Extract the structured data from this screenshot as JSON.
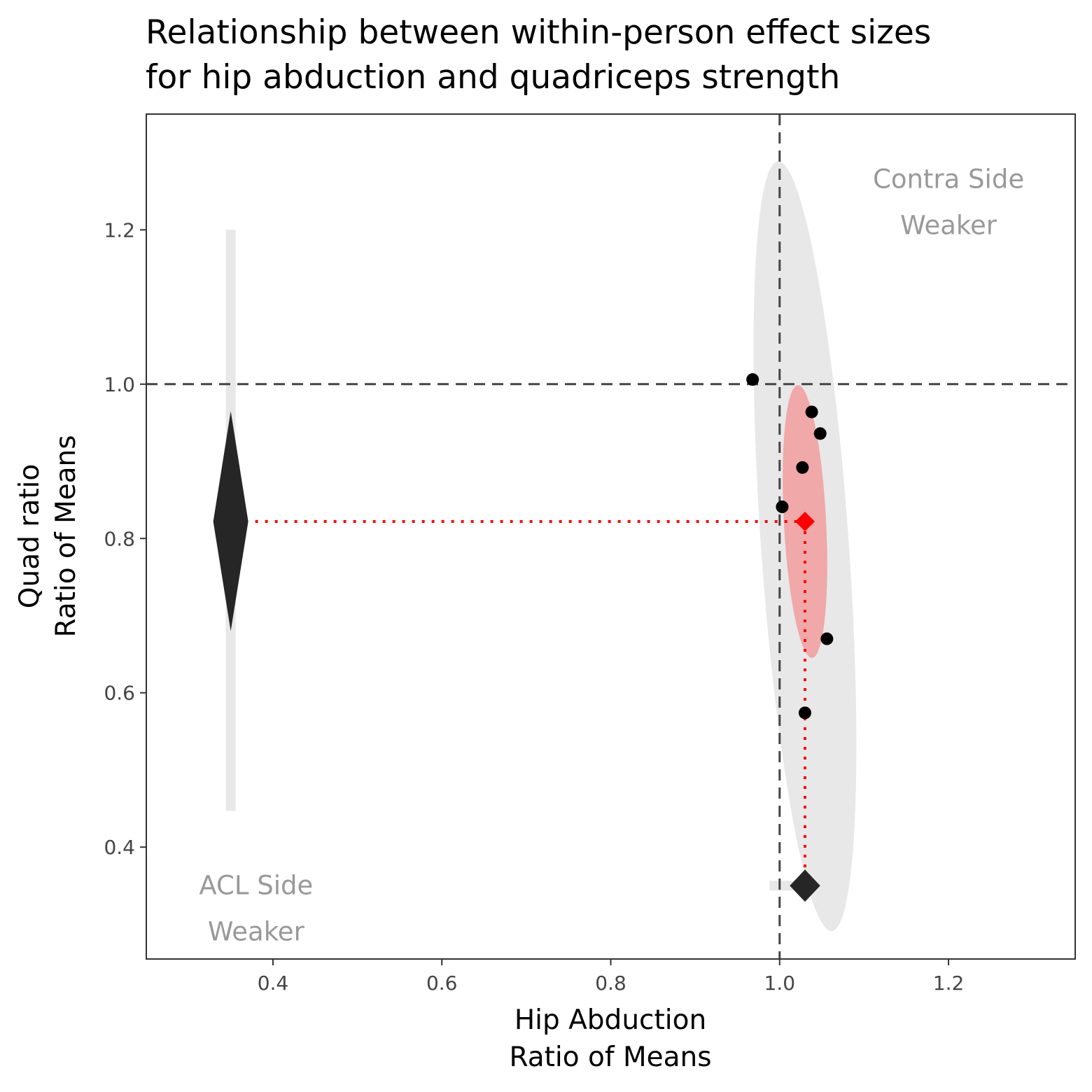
{
  "chart_data": {
    "type": "scatter",
    "title_lines": [
      "Relationship between within-person effect sizes",
      "for hip abduction and quadriceps strength"
    ],
    "xlabel_lines": [
      "Hip Abduction",
      "Ratio of Means"
    ],
    "ylabel_lines": [
      "Quad ratio",
      "Ratio of Means"
    ],
    "xlim": [
      0.25,
      1.35
    ],
    "ylim": [
      0.255,
      1.35
    ],
    "x_ticks": [
      0.4,
      0.6,
      0.8,
      1.0,
      1.2
    ],
    "x_tick_labels": [
      "0.4",
      "0.6",
      "0.8",
      "1.0",
      "1.2"
    ],
    "y_ticks": [
      0.4,
      0.6,
      0.8,
      1.0,
      1.2
    ],
    "y_tick_labels": [
      "0.4",
      "0.6",
      "0.8",
      "1.0",
      "1.2"
    ],
    "grid": false,
    "reference_lines": {
      "x": 1.0,
      "y": 1.0,
      "style": "dashed"
    },
    "points": {
      "x": [
        0.968,
        1.038,
        1.048,
        1.027,
        1.003,
        1.056,
        1.03
      ],
      "y": [
        1.006,
        0.964,
        0.936,
        0.892,
        0.841,
        0.67,
        0.574
      ],
      "color": "#000000"
    },
    "summary_estimate": {
      "x": 1.03,
      "y": 0.822,
      "color": "#ff0000"
    },
    "confidence_ellipse": {
      "x_center": 1.03,
      "y_center": 0.822,
      "x_half_width": 0.025,
      "y_half_width": 0.177,
      "color": "#f0a8a8"
    },
    "prediction_ellipse": {
      "x_center": 1.03,
      "y_center": 0.79,
      "x_half_width": 0.052,
      "y_half_width": 0.5,
      "color": "#e8e8e8"
    },
    "marginal_y": {
      "x_position": 0.35,
      "estimate": 0.822,
      "ci": [
        0.68,
        0.965
      ],
      "pi": [
        0.447,
        1.2
      ]
    },
    "marginal_x": {
      "y_position": 0.35,
      "estimate": 1.03,
      "ci": [
        1.012,
        1.048
      ],
      "pi": [
        0.988,
        1.07
      ]
    },
    "annotations": [
      {
        "lines": [
          "Contra Side",
          "Weaker"
        ],
        "x": 1.2,
        "y": 1.265
      },
      {
        "lines": [
          "ACL Side",
          "Weaker"
        ],
        "x": 0.38,
        "y": 0.35
      }
    ],
    "colors": {
      "axis": "#333333",
      "reference": "#444444",
      "marker_dark": "#262626",
      "annotation": "#999999"
    }
  }
}
